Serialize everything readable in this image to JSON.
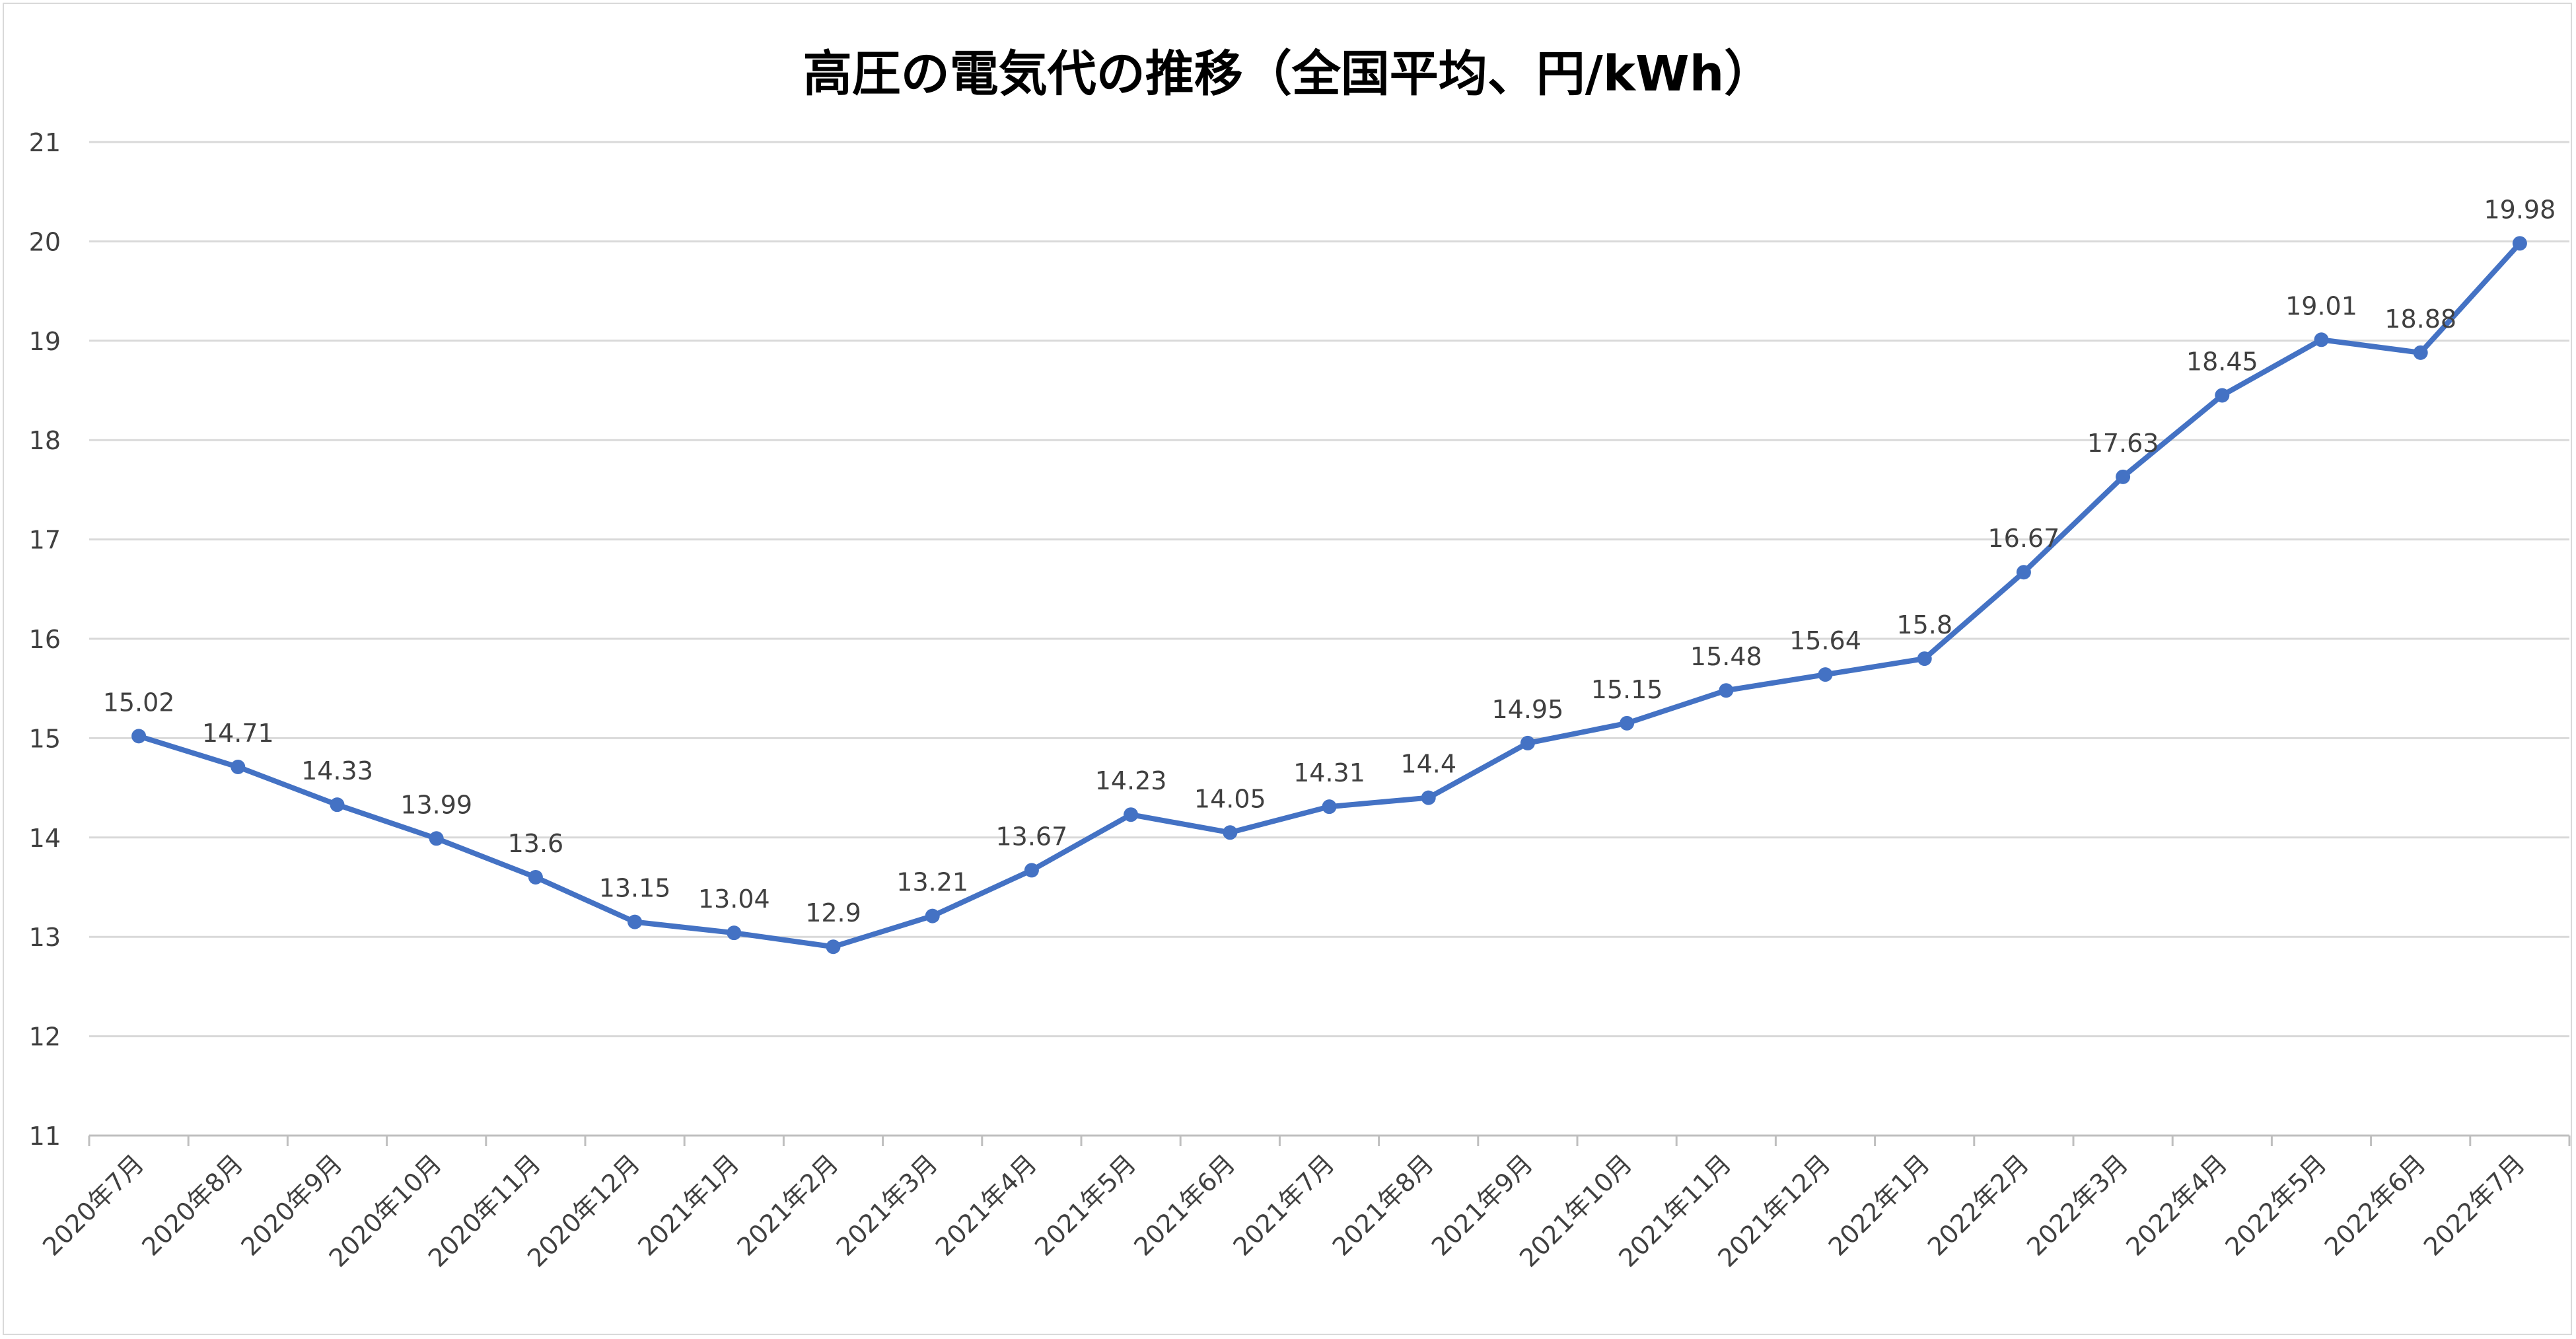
{
  "chart_data": {
    "type": "line",
    "title": "高圧の電気代の推移（全国平均、円/kWh）",
    "xlabel": "",
    "ylabel": "",
    "ylim": [
      11,
      21
    ],
    "y_ticks": [
      "11",
      "12",
      "13",
      "14",
      "15",
      "16",
      "17",
      "18",
      "19",
      "20",
      "21"
    ],
    "grid": true,
    "legend": "none",
    "categories": [
      "2020年7月",
      "2020年8月",
      "2020年9月",
      "2020年10月",
      "2020年11月",
      "2020年12月",
      "2021年1月",
      "2021年2月",
      "2021年3月",
      "2021年4月",
      "2021年5月",
      "2021年6月",
      "2021年7月",
      "2021年8月",
      "2021年9月",
      "2021年10月",
      "2021年11月",
      "2021年12月",
      "2022年1月",
      "2022年2月",
      "2022年3月",
      "2022年4月",
      "2022年5月",
      "2022年6月",
      "2022年7月"
    ],
    "series": [
      {
        "values": [
          15.02,
          14.71,
          14.33,
          13.99,
          13.6,
          13.15,
          13.04,
          12.9,
          13.21,
          13.67,
          14.23,
          14.05,
          14.31,
          14.4,
          14.95,
          15.15,
          15.48,
          15.64,
          15.8,
          16.67,
          17.63,
          18.45,
          19.01,
          18.88,
          19.98
        ],
        "labels": [
          "15.02",
          "14.71",
          "14.33",
          "13.99",
          "13.6",
          "13.15",
          "13.04",
          "12.9",
          "13.21",
          "13.67",
          "14.23",
          "14.05",
          "14.31",
          "14.4",
          "14.95",
          "15.15",
          "15.48",
          "15.64",
          "15.8",
          "16.67",
          "17.63",
          "18.45",
          "19.01",
          "18.88",
          "19.98"
        ],
        "color": "#4472c4"
      }
    ],
    "colors": {
      "line": "#4472c4",
      "grid": "#d9d9d9",
      "axis": "#bfbfbf",
      "text": "#404040"
    }
  }
}
